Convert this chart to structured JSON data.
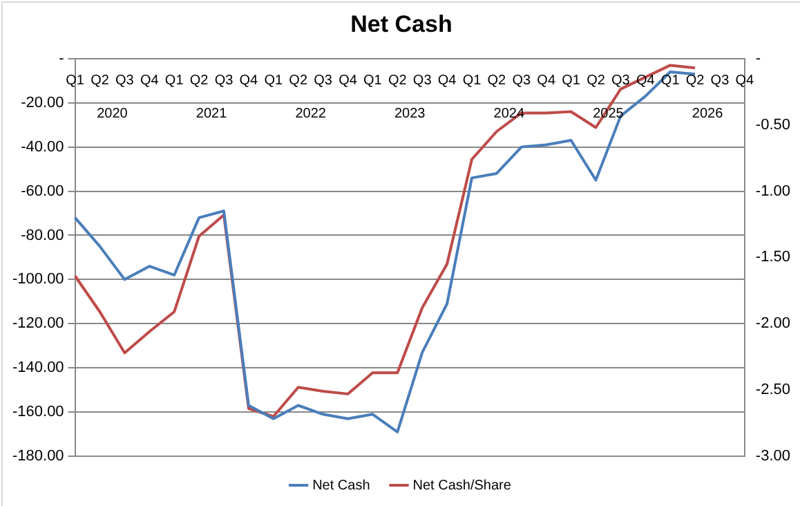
{
  "chart_data": {
    "type": "line",
    "title": "Net Cash",
    "categories": [
      "Q1",
      "Q2",
      "Q3",
      "Q4",
      "Q1",
      "Q2",
      "Q3",
      "Q4",
      "Q1",
      "Q2",
      "Q3",
      "Q4",
      "Q1",
      "Q2",
      "Q3",
      "Q4",
      "Q1",
      "Q2",
      "Q3",
      "Q4",
      "Q1",
      "Q2",
      "Q3",
      "Q4",
      "Q1",
      "Q2",
      "Q3",
      "Q4"
    ],
    "annotations": [
      "2020",
      "2021",
      "2022",
      "2023",
      "2024",
      "2025",
      "2026"
    ],
    "series": [
      {
        "name": "Net Cash",
        "color": "#4a7ebb",
        "values": [
          -72,
          -85,
          -100,
          -94,
          -98,
          -72,
          -69,
          -157,
          -163,
          -157,
          -161,
          -163,
          -161,
          -169,
          -133,
          -111,
          -54,
          -52,
          -40,
          -39,
          -37,
          -55,
          -26,
          -17,
          -6,
          -7,
          null,
          null
        ]
      },
      {
        "name": "Net Cash/Share",
        "color": "#be4b48",
        "axis": "y2",
        "values": [
          -1.64,
          -1.91,
          -2.22,
          -2.06,
          -1.91,
          -1.34,
          -1.18,
          -2.64,
          -2.7,
          -2.48,
          -2.51,
          -2.53,
          -2.37,
          -2.37,
          -1.88,
          -1.55,
          -0.76,
          -0.55,
          -0.41,
          -0.41,
          -0.4,
          -0.52,
          -0.23,
          -0.14,
          -0.05,
          -0.07,
          null,
          null
        ]
      }
    ],
    "ylim": [
      -180,
      0
    ],
    "yticks": [
      {
        "value": 0,
        "label": "-"
      },
      {
        "value": -20,
        "label": "-20.00"
      },
      {
        "value": -40,
        "label": "-40.00"
      },
      {
        "value": -60,
        "label": "-60.00"
      },
      {
        "value": -80,
        "label": "-80.00"
      },
      {
        "value": -100,
        "label": "-100.00"
      },
      {
        "value": -120,
        "label": "-120.00"
      },
      {
        "value": -140,
        "label": "-140.00"
      },
      {
        "value": -160,
        "label": "-160.00"
      },
      {
        "value": -180,
        "label": "-180.00"
      }
    ],
    "y2lim": [
      -3,
      0
    ],
    "y2ticks": [
      {
        "value": 0,
        "label": "-"
      },
      {
        "value": -0.5,
        "label": "-0.50"
      },
      {
        "value": -1,
        "label": "-1.00"
      },
      {
        "value": -1.5,
        "label": "-1.50"
      },
      {
        "value": -2,
        "label": "-2.00"
      },
      {
        "value": -2.5,
        "label": "-2.50"
      },
      {
        "value": -3,
        "label": "-3.00"
      }
    ],
    "grid": "y",
    "legend": "bottom",
    "marker": "none",
    "line_style": "solid"
  }
}
